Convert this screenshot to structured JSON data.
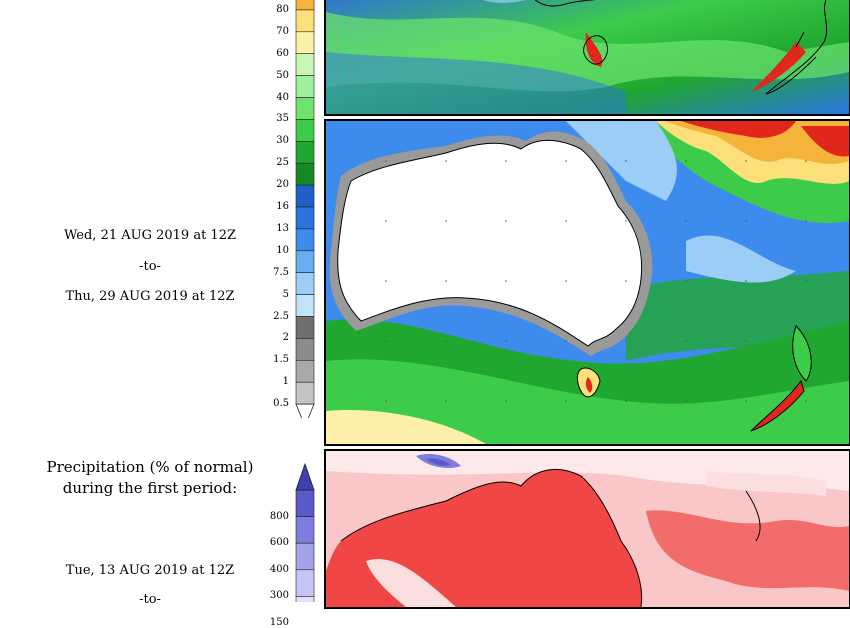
{
  "period2": {
    "start": "Wed, 21 AUG 2019 at 12Z",
    "to": "-to-",
    "end": "Thu, 29 AUG 2019 at 12Z"
  },
  "section3": {
    "title_line1": "Precipitation (% of normal)",
    "title_line2": "during the first period:",
    "start": "Tue, 13 AUG 2019 at 12Z",
    "to": "-to-"
  },
  "precip_scale": {
    "labels": [
      "80",
      "70",
      "60",
      "50",
      "40",
      "35",
      "30",
      "25",
      "20",
      "16",
      "13",
      "10",
      "7.5",
      "5",
      "2.5",
      "2",
      "1.5",
      "1",
      "0.5"
    ],
    "colors": [
      "#f6b33c",
      "#fde07a",
      "#fdf0a8",
      "#c7f7b3",
      "#9ef09b",
      "#6ee46e",
      "#3ccc4a",
      "#1fa72f",
      "#138a25",
      "#1f5fc8",
      "#2b74e0",
      "#3e8bee",
      "#6aaef2",
      "#9ccdf6",
      "#bfe4f7",
      "#6f6f6f",
      "#8c8c8c",
      "#a9a9a9",
      "#c4c4c4"
    ]
  },
  "percent_scale": {
    "labels": [
      "800",
      "600",
      "400",
      "300",
      "150"
    ],
    "colors": [
      "#5959c9",
      "#7d7ddd",
      "#a2a2ea",
      "#c5c5f3",
      "#e2e2f9"
    ]
  },
  "colors": {
    "ocean_dry": "#3b7be0",
    "land_white": "#ffffff",
    "dry_gray": "#9a9a9a",
    "heavy_red": "#e1271b",
    "percent_red": "#f04646"
  }
}
